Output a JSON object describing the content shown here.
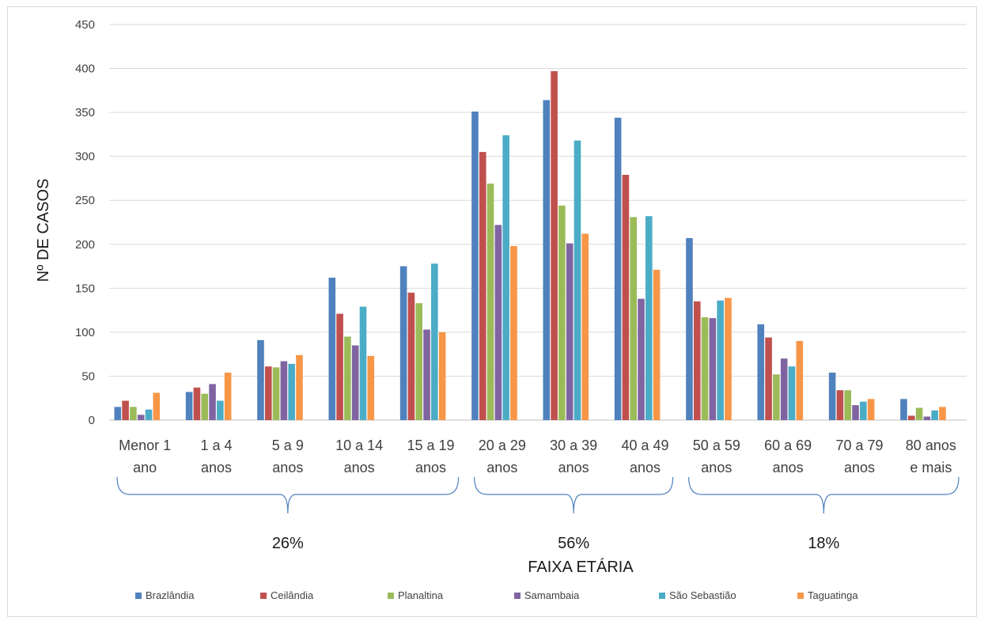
{
  "chart_data": {
    "type": "bar",
    "xlabel": "FAIXA ETÁRIA",
    "ylabel": "Nº DE CASOS",
    "ylim": [
      0,
      450
    ],
    "yticks": [
      "0",
      "50",
      "100",
      "150",
      "200",
      "250",
      "300",
      "350",
      "400",
      "450"
    ],
    "grid": true,
    "legend_position": "bottom",
    "categories": [
      [
        "Menor 1",
        "ano"
      ],
      [
        "1 a 4",
        "anos"
      ],
      [
        "5 a 9",
        "anos"
      ],
      [
        "10 a 14",
        "anos"
      ],
      [
        "15 a 19",
        "anos"
      ],
      [
        "20 a 29",
        "anos"
      ],
      [
        "30 a 39",
        "anos"
      ],
      [
        "40 a 49",
        "anos"
      ],
      [
        "50 a 59",
        "anos"
      ],
      [
        "60 a 69",
        "anos"
      ],
      [
        "70 a 79",
        "anos"
      ],
      [
        "80 anos",
        "e mais"
      ]
    ],
    "series": [
      {
        "name": "Brazlândia",
        "color": "#4F81BD",
        "values": [
          15,
          32,
          91,
          162,
          175,
          351,
          364,
          344,
          207,
          109,
          54,
          24
        ]
      },
      {
        "name": "Ceilândia",
        "color": "#C0504D",
        "values": [
          22,
          37,
          61,
          121,
          145,
          305,
          397,
          279,
          135,
          94,
          34,
          5
        ]
      },
      {
        "name": "Planaltina",
        "color": "#9BBB59",
        "values": [
          15,
          30,
          60,
          95,
          133,
          269,
          244,
          231,
          117,
          52,
          34,
          14
        ]
      },
      {
        "name": "Samambaia",
        "color": "#8064A2",
        "values": [
          6,
          41,
          67,
          85,
          103,
          222,
          201,
          138,
          116,
          70,
          17,
          4
        ]
      },
      {
        "name": "São Sebastião",
        "color": "#4BACC6",
        "values": [
          12,
          22,
          64,
          129,
          178,
          324,
          318,
          232,
          136,
          61,
          21,
          11
        ]
      },
      {
        "name": "Taguatinga",
        "color": "#F79646",
        "values": [
          31,
          54,
          74,
          73,
          100,
          198,
          212,
          171,
          139,
          90,
          24,
          15
        ]
      }
    ],
    "groups": [
      {
        "label": "26%",
        "from": 0,
        "to": 4
      },
      {
        "label": "56%",
        "from": 5,
        "to": 7
      },
      {
        "label": "18%",
        "from": 8,
        "to": 11
      }
    ]
  }
}
